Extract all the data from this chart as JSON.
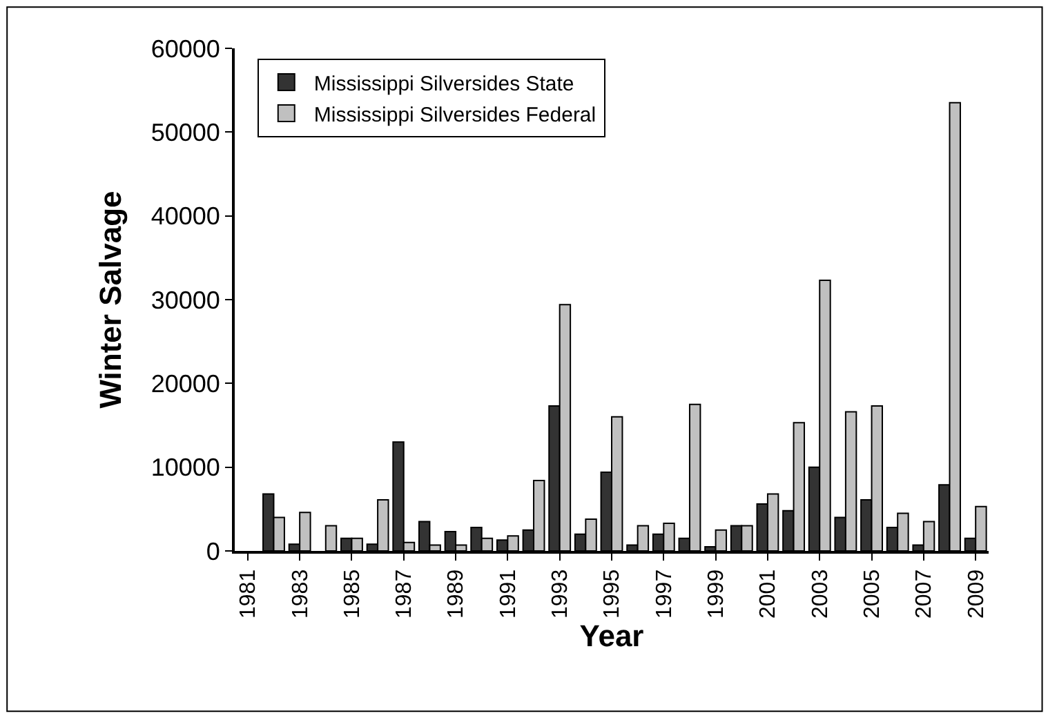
{
  "chart_data": {
    "type": "bar",
    "xlabel": "Year",
    "ylabel": "Winter Salvage",
    "categories": [
      "1981",
      null,
      "1983",
      null,
      "1985",
      null,
      "1987",
      null,
      "1989",
      null,
      "1991",
      null,
      "1993",
      null,
      "1995",
      null,
      "1997",
      null,
      "1999",
      null,
      "2001",
      null,
      "2003",
      null,
      "2005",
      null,
      "2007",
      null,
      "2009"
    ],
    "series": [
      {
        "name": "Mississippi Silversides State",
        "color": "#333333",
        "values": [
          null,
          6800,
          800,
          null,
          1500,
          800,
          13000,
          3500,
          2300,
          2800,
          1300,
          2500,
          17300,
          2000,
          9400,
          700,
          2000,
          1500,
          500,
          3000,
          5600,
          4800,
          10000,
          4000,
          6100,
          2800,
          700,
          7900,
          1500
        ]
      },
      {
        "name": "Mississippi Silversides Federal",
        "color": "#c0c0c0",
        "values": [
          null,
          4000,
          4600,
          3000,
          1500,
          6100,
          1000,
          700,
          700,
          1500,
          1800,
          8400,
          29400,
          3800,
          16000,
          3000,
          3300,
          17500,
          2500,
          3000,
          6800,
          15300,
          32300,
          16600,
          17300,
          4500,
          3500,
          53500,
          5300
        ]
      }
    ],
    "ylim": [
      0,
      60000
    ],
    "yticks": [
      0,
      10000,
      20000,
      30000,
      40000,
      50000,
      60000
    ],
    "legend": "top left"
  }
}
